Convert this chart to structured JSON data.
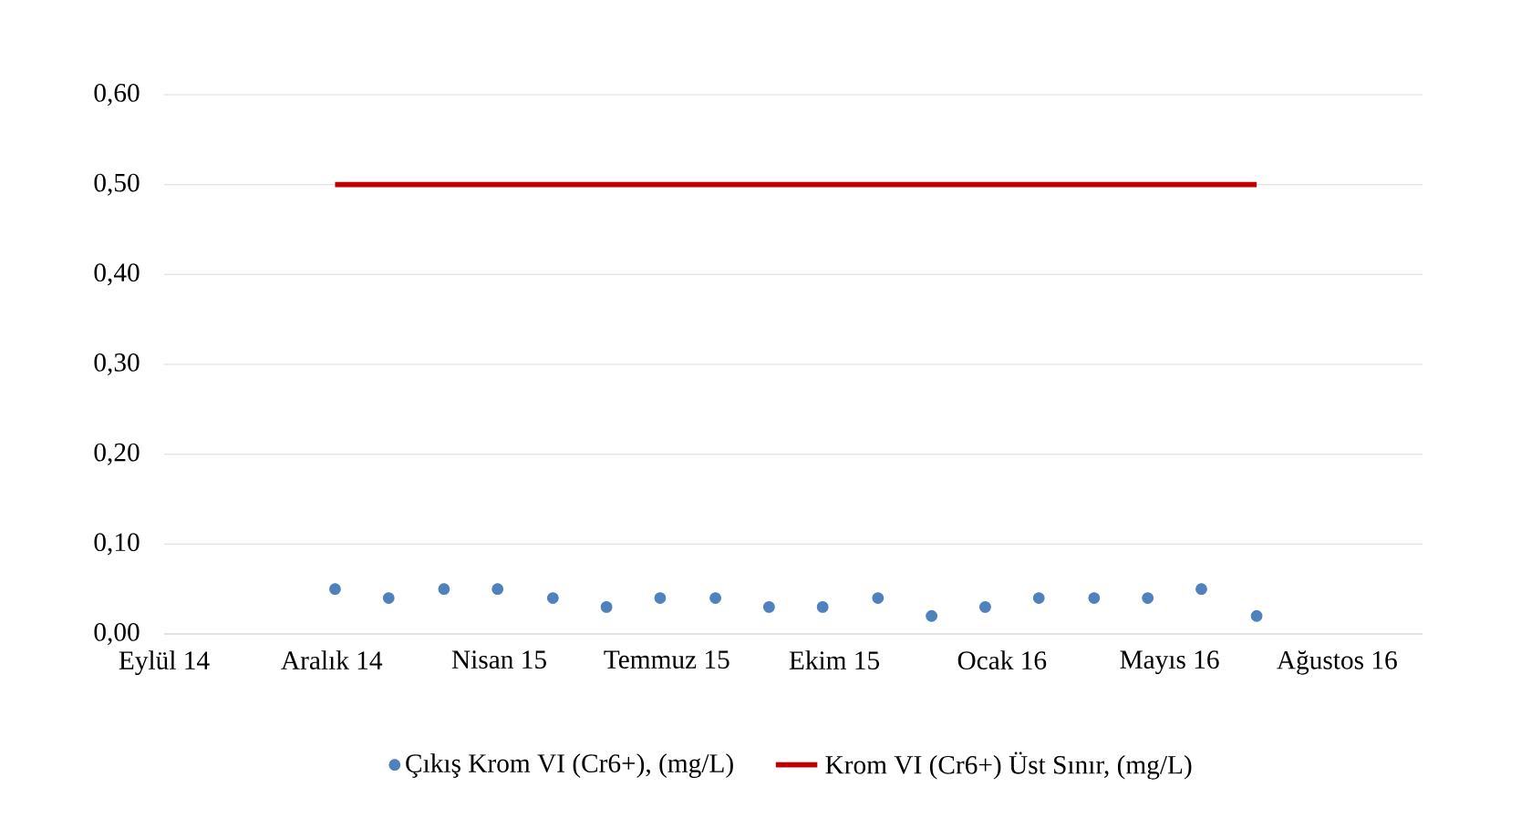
{
  "chart_data": {
    "type": "scatter",
    "x": [
      "2014-12-26",
      "2015-01-27",
      "2015-03-01",
      "2015-04-02",
      "2015-05-05",
      "2015-06-06",
      "2015-07-08",
      "2015-08-10",
      "2015-09-11",
      "2015-10-13",
      "2015-11-15",
      "2015-12-17",
      "2016-01-18",
      "2016-02-19",
      "2016-03-23",
      "2016-04-24",
      "2016-05-26",
      "2016-06-28"
    ],
    "series": [
      {
        "name": "Çıkış Krom VI (Cr6+), (mg/L)",
        "color": "#4f81bd",
        "marker": "circle",
        "values": [
          0.05,
          0.04,
          0.05,
          0.05,
          0.04,
          0.03,
          0.04,
          0.04,
          0.03,
          0.03,
          0.04,
          0.02,
          0.03,
          0.04,
          0.04,
          0.04,
          0.05,
          0.02
        ]
      },
      {
        "name": "Krom VI (Cr6+) Üst Sınır, (mg/L)",
        "type": "line",
        "color": "#c00000",
        "line_style": "solid",
        "values": [
          0.5,
          0.5,
          0.5,
          0.5,
          0.5,
          0.5,
          0.5,
          0.5,
          0.5,
          0.5,
          0.5,
          0.5,
          0.5,
          0.5,
          0.5,
          0.5,
          0.5,
          0.5
        ]
      }
    ],
    "xlim": [
      "2014-09-15",
      "2016-10-05"
    ],
    "xticks": [
      {
        "value": "2014-09-15",
        "label": "Eylül 14"
      },
      {
        "value": "2014-12-24",
        "label": "Aralık 14"
      },
      {
        "value": "2015-04-03",
        "label": "Nisan 15"
      },
      {
        "value": "2015-07-12",
        "label": "Temmuz 15"
      },
      {
        "value": "2015-10-20",
        "label": "Ekim 15"
      },
      {
        "value": "2016-01-28",
        "label": "Ocak 16"
      },
      {
        "value": "2016-05-07",
        "label": "Mayıs 16"
      },
      {
        "value": "2016-08-15",
        "label": "Ağustos 16"
      }
    ],
    "ylim": [
      0,
      0.6
    ],
    "yticks": [
      {
        "value": 0,
        "label": "0,00"
      },
      {
        "value": 0.1,
        "label": "0,10"
      },
      {
        "value": 0.2,
        "label": "0,20"
      },
      {
        "value": 0.3,
        "label": "0,30"
      },
      {
        "value": 0.4,
        "label": "0,40"
      },
      {
        "value": 0.5,
        "label": "0,50"
      },
      {
        "value": 0.6,
        "label": "0,60"
      }
    ],
    "grid": "y",
    "legend": "bottom"
  }
}
